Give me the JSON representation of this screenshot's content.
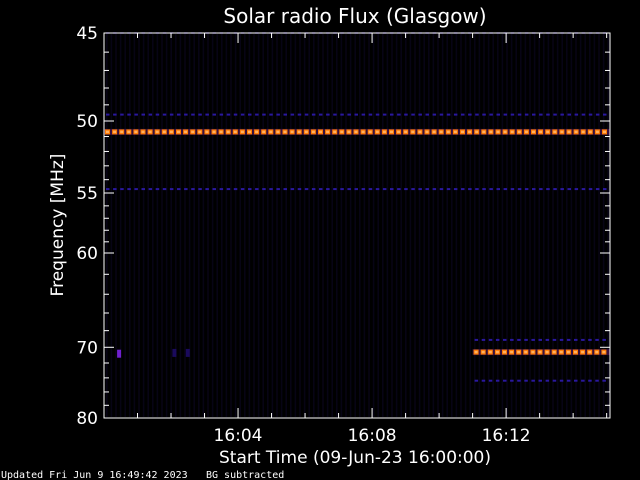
{
  "chart_data": {
    "type": "heatmap",
    "title": "Solar radio Flux (Glasgow)",
    "xlabel": "Start Time (09-Jun-23 16:00:00)",
    "ylabel": "Frequency [MHz]",
    "x_range_minutes": [
      0,
      15.1
    ],
    "x_ticks": [
      {
        "minute": 4,
        "label": "16:04"
      },
      {
        "minute": 8,
        "label": "16:08"
      },
      {
        "minute": 12,
        "label": "16:12"
      }
    ],
    "y_range_mhz": [
      45,
      80
    ],
    "y_ticks": [
      {
        "mhz": 45,
        "label": "45"
      },
      {
        "mhz": 50,
        "label": "50"
      },
      {
        "mhz": 55,
        "label": "55"
      },
      {
        "mhz": 60,
        "label": "60"
      },
      {
        "mhz": 70,
        "label": "70"
      },
      {
        "mhz": 80,
        "label": "80"
      }
    ],
    "y_minor_ticks_mhz": [
      46,
      47,
      48,
      49,
      51,
      52,
      53,
      54,
      56,
      57,
      58,
      59,
      62,
      64,
      66,
      68,
      72,
      74,
      76,
      78
    ],
    "background_color": "#000000",
    "axis_color": "#ffffff",
    "intensity_colors": {
      "low": "#1a0a5c",
      "medium": "#3a1ab8",
      "medium_dot": "#2a18a0",
      "high": "#ff7a00",
      "peak": "#ffb060",
      "burst": "#7020d0"
    },
    "bands": [
      {
        "mhz": 45.0,
        "start_min": 0,
        "end_min": 15.1,
        "level": "low"
      },
      {
        "mhz": 49.6,
        "start_min": 0,
        "end_min": 15.1,
        "level": "medium"
      },
      {
        "mhz": 50.7,
        "start_min": 0,
        "end_min": 15.1,
        "level": "high"
      },
      {
        "mhz": 54.7,
        "start_min": 0,
        "end_min": 15.1,
        "level": "medium"
      },
      {
        "mhz": 69.1,
        "start_min": 11,
        "end_min": 15.1,
        "level": "medium"
      },
      {
        "mhz": 70.6,
        "start_min": 11,
        "end_min": 15.1,
        "level": "high"
      },
      {
        "mhz": 74.4,
        "start_min": 11,
        "end_min": 15.1,
        "level": "medium"
      }
    ],
    "spots": [
      {
        "mhz": 70.8,
        "minute": 0.45,
        "level": "burst"
      },
      {
        "mhz": 70.7,
        "minute": 2.1,
        "level": "low"
      },
      {
        "mhz": 70.7,
        "minute": 2.5,
        "level": "low"
      }
    ]
  },
  "footer": {
    "updated": "Updated Fri Jun  9 16:49:42 2023",
    "note": "BG subtracted"
  }
}
